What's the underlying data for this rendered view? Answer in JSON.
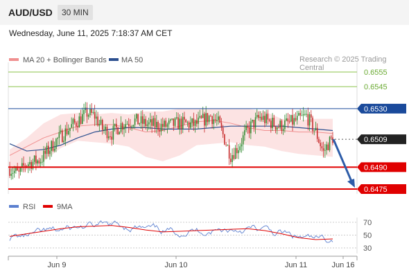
{
  "header": {
    "symbol": "AUD/USD",
    "timeframe": "30 MIN",
    "timestamp": "Wednesday, June 11, 2025 7:18:37 AM CET"
  },
  "copyright": "Research © 2025 Trading Central",
  "colors": {
    "support": "#e00000",
    "pivot": "#1a4a9b",
    "target": "#6aaa32",
    "bullish": "#2e8a2e",
    "bearish": "#c62828",
    "current": "#222222",
    "band": "#fbdcdc",
    "ma20": "#f08f8f",
    "ma50": "#2c4f8f",
    "rsi": "#5b7fcf",
    "rsi_ma": "#e00000"
  },
  "chart_data": [
    {
      "type": "candlestick",
      "title": "AUD/USD",
      "legend": [
        {
          "name": "MA 20 + Bollinger Bands"
        },
        {
          "name": "MA 50"
        }
      ],
      "legend_position": "top-left",
      "x_ticks": [
        "Jun 9",
        "Jun 10",
        "Jun 11",
        "Jun 16"
      ],
      "ylim": [
        0.647,
        0.6565
      ],
      "levels": [
        {
          "label": "0.6555",
          "value": 0.6555,
          "role": "target"
        },
        {
          "label": "0.6545",
          "value": 0.6545,
          "role": "target"
        },
        {
          "label": "0.6530",
          "value": 0.653,
          "role": "pivot"
        },
        {
          "label": "0.6509",
          "value": 0.6509,
          "role": "current"
        },
        {
          "label": "0.6490",
          "value": 0.649,
          "role": "support"
        },
        {
          "label": "0.6475",
          "value": 0.6475,
          "role": "support"
        }
      ],
      "ma20_band": {
        "ma": [
          0.6498,
          0.6504,
          0.651,
          0.6514,
          0.6518,
          0.6519,
          0.6519,
          0.6517,
          0.6514,
          0.6515,
          0.6518,
          0.6521,
          0.6522,
          0.652,
          0.6517,
          0.6515,
          0.6515,
          0.6514,
          0.6514,
          0.6513
        ],
        "upper": [
          0.6502,
          0.651,
          0.652,
          0.6526,
          0.6527,
          0.6526,
          0.6527,
          0.6526,
          0.6528,
          0.6528,
          0.653,
          0.653,
          0.653,
          0.653,
          0.653,
          0.6528,
          0.6523,
          0.6522,
          0.6523,
          0.6523
        ],
        "lower": [
          0.6487,
          0.6488,
          0.6494,
          0.6503,
          0.6508,
          0.6507,
          0.6506,
          0.6504,
          0.6497,
          0.6494,
          0.6498,
          0.6505,
          0.6506,
          0.6507,
          0.6505,
          0.6504,
          0.6501,
          0.6499,
          0.6498,
          0.6497
        ]
      },
      "ma50": [
        0.6506,
        0.6501,
        0.6502,
        0.6505,
        0.651,
        0.6514,
        0.6516,
        0.6517,
        0.6517,
        0.6516,
        0.6516,
        0.6516,
        0.6517,
        0.6518,
        0.6518,
        0.6518,
        0.6518,
        0.6517,
        0.6516,
        0.6515
      ],
      "projection": {
        "from": 0.6509,
        "to": 0.6475
      }
    },
    {
      "type": "line",
      "title": "RSI",
      "series": [
        {
          "name": "RSI"
        },
        {
          "name": "9MA"
        }
      ],
      "legend_position": "top-left",
      "ylim": [
        25,
        75
      ],
      "y_ticks": [
        "70",
        "50",
        "30"
      ],
      "rsi_ma": [
        48,
        52,
        56,
        60,
        63,
        64,
        65,
        62,
        58,
        55,
        56,
        57,
        58,
        59,
        60,
        57,
        52,
        46,
        43,
        44
      ]
    }
  ]
}
